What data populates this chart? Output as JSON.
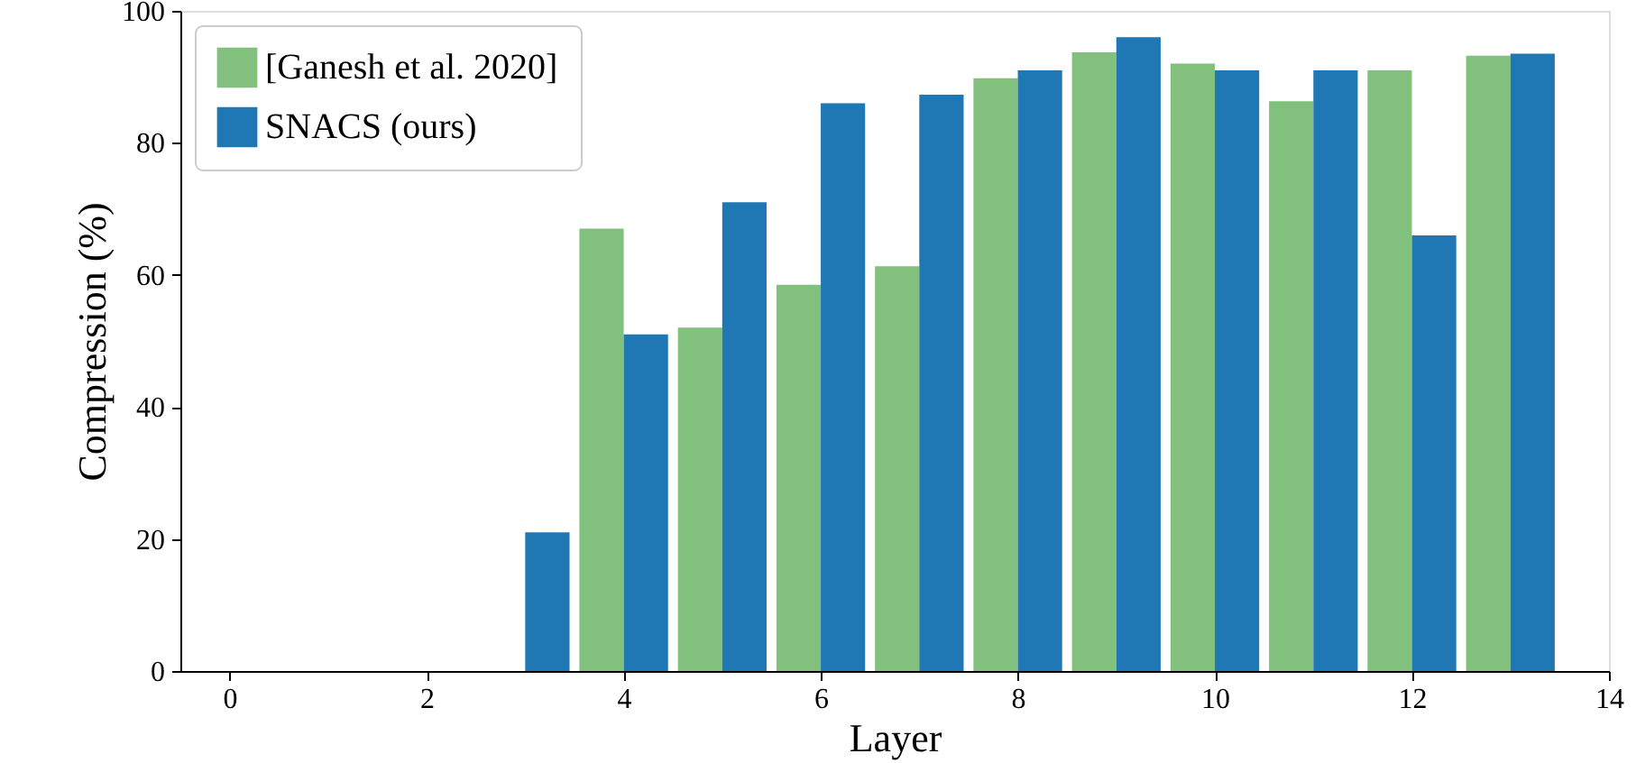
{
  "chart_data": {
    "type": "bar",
    "xlabel": "Layer",
    "ylabel": "Compression (%)",
    "x": [
      0,
      1,
      2,
      3,
      4,
      5,
      6,
      7,
      8,
      9,
      10,
      11,
      12,
      13
    ],
    "series": [
      {
        "name": "[Ganesh et al. 2020]",
        "color": "#82c07e",
        "values": [
          0,
          0,
          0,
          0,
          67,
          52,
          58.5,
          61.3,
          89.8,
          93.7,
          92,
          86.3,
          91,
          93.2
        ]
      },
      {
        "name": "SNACS (ours)",
        "color": "#1f77b4",
        "values": [
          0,
          0,
          0,
          21,
          51,
          71,
          86,
          87.3,
          91,
          96,
          91,
          91,
          66,
          93.5
        ]
      }
    ],
    "xlim": [
      -0.5,
      14
    ],
    "xticks": [
      0,
      2,
      4,
      6,
      8,
      10,
      12,
      14
    ],
    "ylim": [
      0,
      100
    ],
    "yticks": [
      0,
      20,
      40,
      60,
      80,
      100
    ],
    "grid": false,
    "legend": "top left"
  }
}
